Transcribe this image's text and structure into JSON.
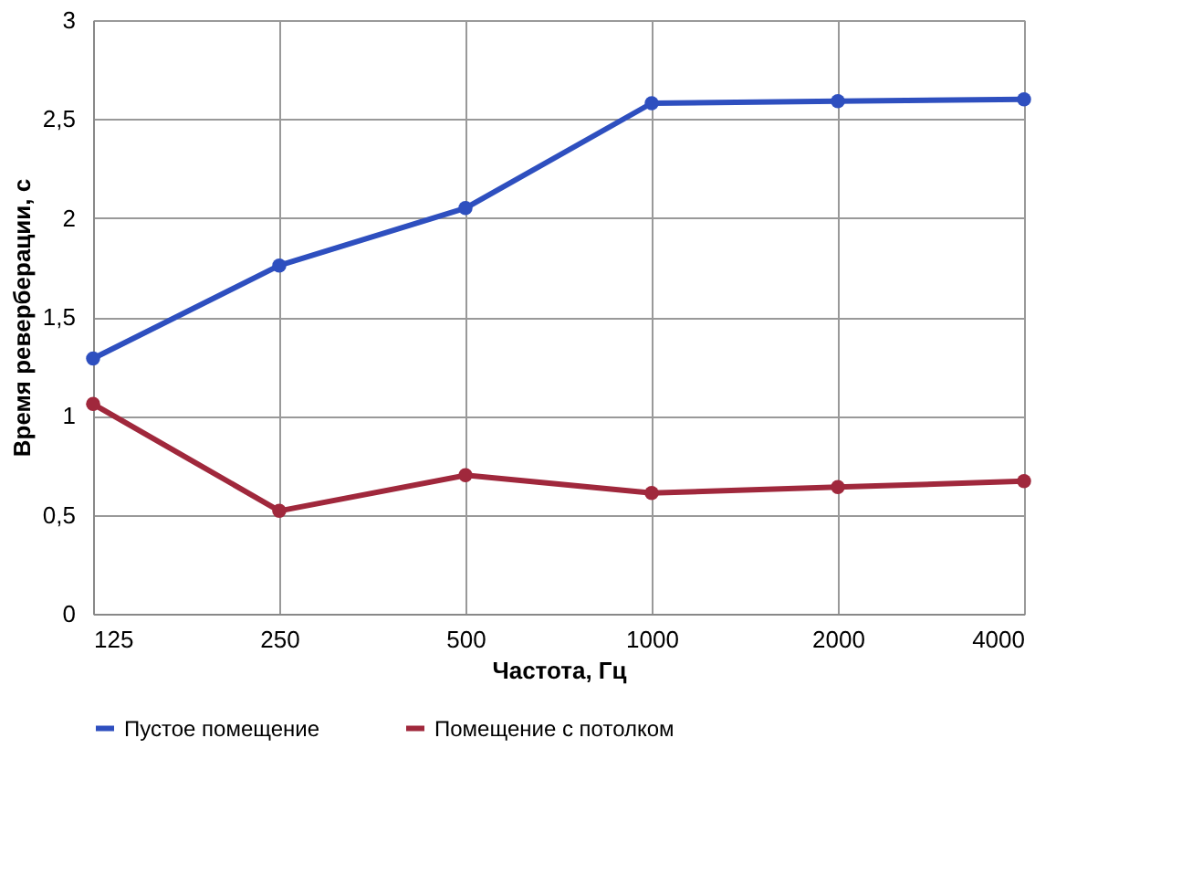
{
  "chart_data": {
    "type": "line",
    "xlabel": "Частота, Гц",
    "ylabel": "Время реверберации, с",
    "categories": [
      "125",
      "250",
      "500",
      "1000",
      "2000",
      "4000"
    ],
    "series": [
      {
        "name": "Пустое помещение",
        "color": "#2e4fbf",
        "values": [
          1.29,
          1.76,
          2.05,
          2.58,
          2.59,
          2.6
        ]
      },
      {
        "name": "Помещение с потолком",
        "color": "#a0283c",
        "values": [
          1.06,
          0.52,
          0.7,
          0.61,
          0.64,
          0.67
        ]
      }
    ],
    "ylim": [
      0,
      3
    ],
    "yticks": [
      0,
      {
        "value": 0.5,
        "label": "0,5"
      },
      1,
      {
        "value": 1.5,
        "label": "1,5"
      },
      2,
      {
        "value": 2.5,
        "label": "2,5"
      },
      3
    ],
    "grid": true,
    "legend": "bottom",
    "marker": "circle",
    "line_style": "solid"
  }
}
